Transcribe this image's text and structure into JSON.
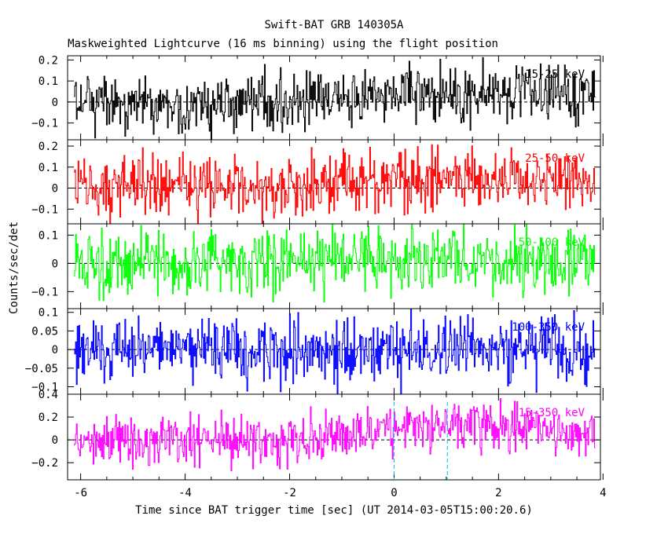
{
  "chart_data": {
    "type": "line",
    "title": "Swift-BAT GRB 140305A",
    "subtitle": "Maskweighted Lightcurve (16 ms binning) using the flight position",
    "xlabel": "Time since BAT trigger time [sec] (UT 2014-03-05T15:00:20.6)",
    "ylabel": "Counts/sec/det",
    "xlim": [
      -6.25,
      3.95
    ],
    "x_ticks": [
      "-6",
      "-4",
      "-2",
      "0",
      "2",
      "4"
    ],
    "x_tick_values": [
      -6,
      -4,
      -2,
      0,
      2,
      4
    ],
    "x_start": -6.13,
    "x_end": 3.85,
    "bin_seconds": 0.016,
    "trigger_marker_x": 0,
    "secondary_marker_x": 1.02,
    "grid": false,
    "series": [
      {
        "name": "15-25 keV",
        "color": "#000000",
        "ylim": [
          -0.18,
          0.22
        ],
        "y_ticks": [
          "0.2",
          "0.1",
          "0",
          "−0.1"
        ],
        "y_tick_values": [
          0.2,
          0.1,
          0,
          -0.1
        ],
        "noise": 0.065,
        "trend": [
          [
            -6.13,
            0.01
          ],
          [
            -4.5,
            -0.02
          ],
          [
            -2,
            0.0
          ],
          [
            0,
            0.03
          ],
          [
            3.85,
            0.04
          ]
        ]
      },
      {
        "name": "25-50 keV",
        "color": "#ff0000",
        "ylim": [
          -0.17,
          0.23
        ],
        "y_ticks": [
          "0.2",
          "0.1",
          "0",
          "−0.1"
        ],
        "y_tick_values": [
          0.2,
          0.1,
          0,
          -0.1
        ],
        "noise": 0.07,
        "trend": [
          [
            -6.13,
            0.01
          ],
          [
            -2,
            0.01
          ],
          [
            0,
            0.04
          ],
          [
            1,
            0.05
          ],
          [
            3.85,
            0.02
          ]
        ]
      },
      {
        "name": "50-100 keV",
        "color": "#00ff00",
        "ylim": [
          -0.16,
          0.14
        ],
        "y_ticks": [
          "0.1",
          "0",
          "−0.1"
        ],
        "y_tick_values": [
          0.1,
          0,
          -0.1
        ],
        "noise": 0.06,
        "trend": [
          [
            -6.13,
            0.0
          ],
          [
            -2,
            0.0
          ],
          [
            0,
            0.02
          ],
          [
            3.85,
            0.0
          ]
        ]
      },
      {
        "name": "100-350 keV",
        "color": "#0000ff",
        "ylim": [
          -0.12,
          0.11
        ],
        "y_ticks": [
          "0.1",
          "0.05",
          "0",
          "−0.05",
          "−0.1"
        ],
        "y_tick_values": [
          0.1,
          0.05,
          0,
          -0.05,
          -0.1
        ],
        "noise": 0.045,
        "trend": [
          [
            -6.13,
            0.0
          ],
          [
            3.85,
            0.0
          ]
        ]
      },
      {
        "name": "15-350 keV",
        "color": "#ff00ff",
        "ylim": [
          -0.35,
          0.4
        ],
        "y_ticks": [
          "0.4",
          "0.2",
          "0",
          "−0.2"
        ],
        "y_tick_values": [
          0.4,
          0.2,
          0,
          -0.2
        ],
        "noise": 0.11,
        "trend": [
          [
            -6.13,
            0.0
          ],
          [
            -2,
            0.0
          ],
          [
            -1,
            0.04
          ],
          [
            0,
            0.1
          ],
          [
            1,
            0.12
          ],
          [
            3.85,
            0.06
          ]
        ]
      }
    ]
  }
}
